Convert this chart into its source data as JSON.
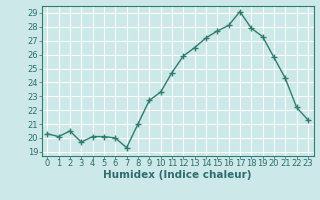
{
  "x": [
    0,
    1,
    2,
    3,
    4,
    5,
    6,
    7,
    8,
    9,
    10,
    11,
    12,
    13,
    14,
    15,
    16,
    17,
    18,
    19,
    20,
    21,
    22,
    23
  ],
  "y": [
    20.3,
    20.1,
    20.5,
    19.7,
    20.1,
    20.1,
    20.0,
    19.3,
    21.0,
    22.7,
    23.3,
    24.7,
    25.9,
    26.5,
    27.2,
    27.7,
    28.1,
    29.1,
    27.9,
    27.3,
    25.8,
    24.3,
    22.2,
    21.3
  ],
  "line_color": "#2e7d6e",
  "marker": "+",
  "marker_size": 4,
  "bg_color": "#cce8e8",
  "grid_color": "#ffffff",
  "xlabel": "Humidex (Indice chaleur)",
  "ylabel_ticks": [
    19,
    20,
    21,
    22,
    23,
    24,
    25,
    26,
    27,
    28,
    29
  ],
  "ylim": [
    18.7,
    29.5
  ],
  "xlim": [
    -0.5,
    23.5
  ],
  "xticks": [
    0,
    1,
    2,
    3,
    4,
    5,
    6,
    7,
    8,
    9,
    10,
    11,
    12,
    13,
    14,
    15,
    16,
    17,
    18,
    19,
    20,
    21,
    22,
    23
  ],
  "xlabel_fontsize": 7.5,
  "tick_fontsize": 6,
  "line_width": 1.0
}
